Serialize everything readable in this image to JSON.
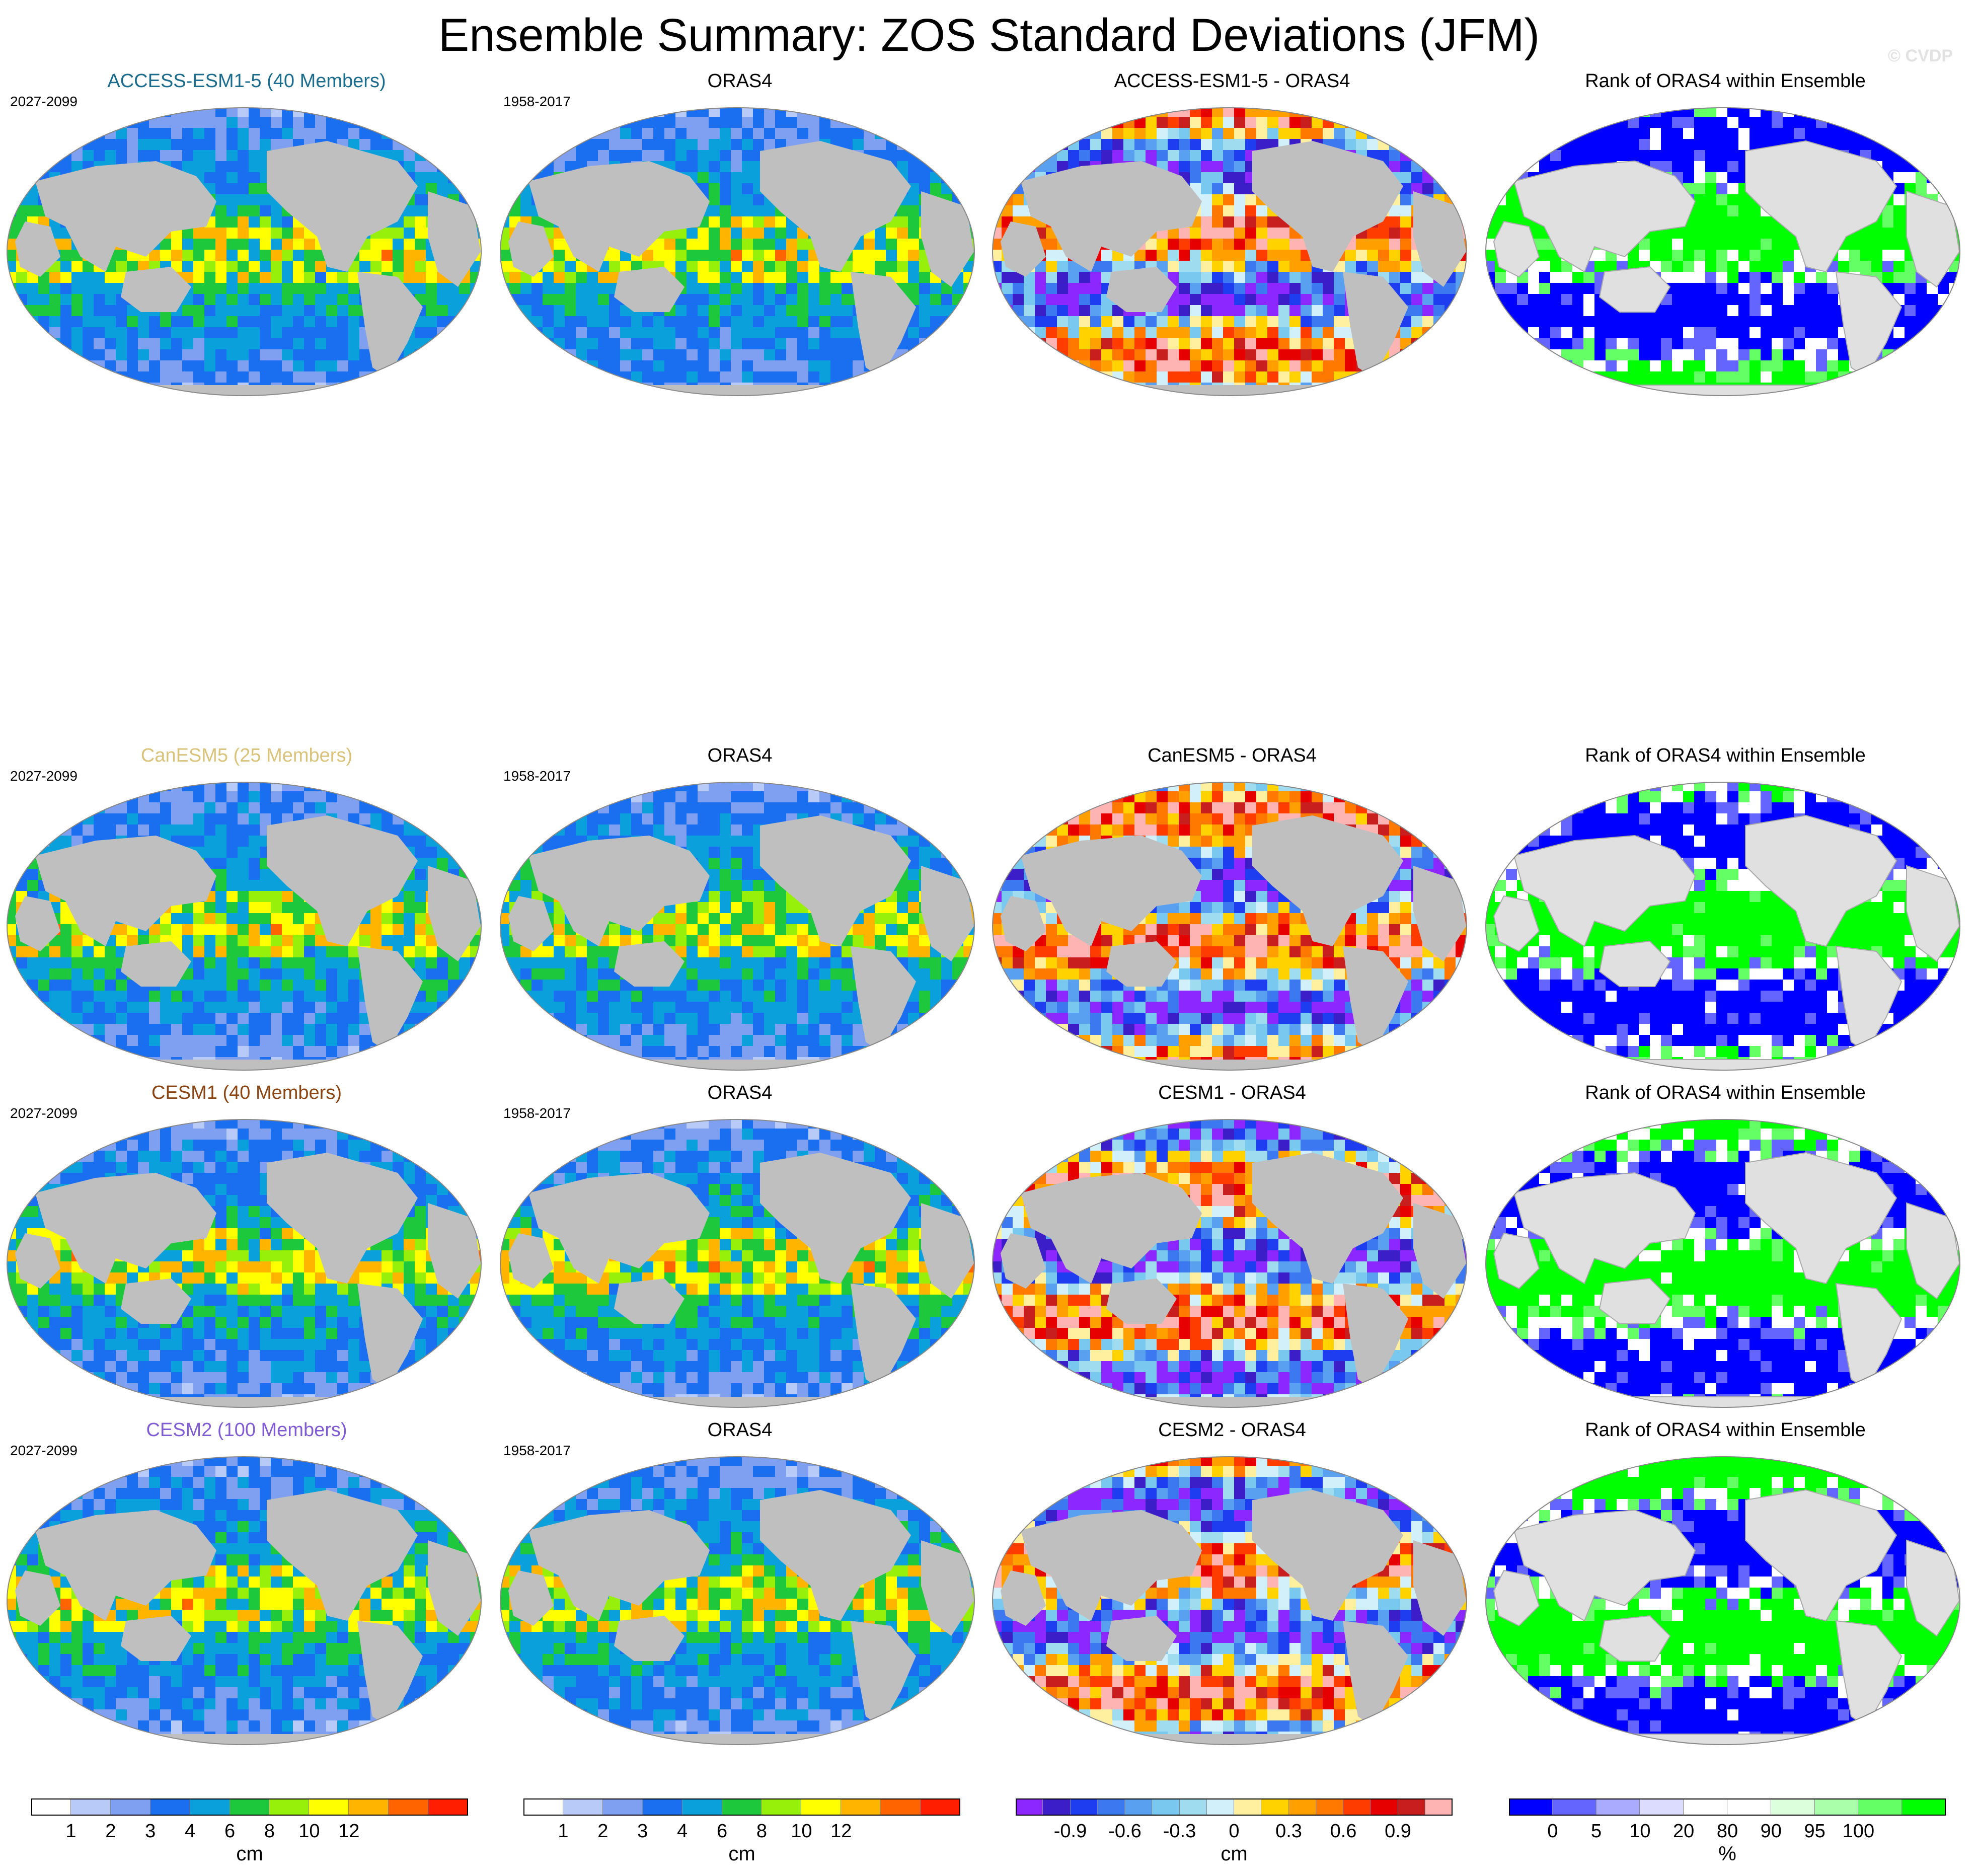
{
  "title": "Ensemble Summary: ZOS Standard Deviations (JFM)",
  "copyright": "© CVDP",
  "colors": {
    "land_dark": "#bfbfbf",
    "land_light": "#e0e0e0",
    "sd_palette": [
      "#ffffff",
      "#b8caf8",
      "#7f9ff0",
      "#1a6ef0",
      "#0aa0dc",
      "#1ec83c",
      "#96f00a",
      "#ffff00",
      "#ffb400",
      "#ff6400",
      "#ff1e00"
    ],
    "diff_palette": [
      "#8c28ff",
      "#3c1ec8",
      "#1e3cf0",
      "#3c78f0",
      "#5aa0f0",
      "#78c8f0",
      "#a0dcf0",
      "#d2f0fa",
      "#fff0a0",
      "#ffd200",
      "#ffa000",
      "#ff7800",
      "#ff3c00",
      "#e60000",
      "#c81e1e",
      "#ffb4b4"
    ],
    "rank_palette": [
      "#0000ff",
      "#6464ff",
      "#aaaaff",
      "#dcdcff",
      "#ffffff",
      "#ffffff",
      "#dcffdc",
      "#aaffaa",
      "#64ff64",
      "#00ff00"
    ]
  },
  "rows": [
    {
      "model_title": "ACCESS-ESM1-5 (40 Members)",
      "model_color": "#1a6b8c",
      "model_period": "2027-2099",
      "obs_title": "ORAS4",
      "obs_period": "1958-2017",
      "diff_title": "ACCESS-ESM1-5 - ORAS4",
      "rank_title": "Rank of ORAS4 within Ensemble"
    },
    {
      "model_title": "CanESM5 (25 Members)",
      "model_color": "#d9c27a",
      "model_period": "2027-2099",
      "obs_title": "ORAS4",
      "obs_period": "1958-2017",
      "diff_title": "CanESM5 - ORAS4",
      "rank_title": "Rank of ORAS4 within Ensemble"
    },
    {
      "model_title": "CESM1 (40 Members)",
      "model_color": "#8a4512",
      "model_period": "2027-2099",
      "obs_title": "ORAS4",
      "obs_period": "1958-2017",
      "diff_title": "CESM1 - ORAS4",
      "rank_title": "Rank of ORAS4 within Ensemble"
    },
    {
      "model_title": "CESM2 (100 Members)",
      "model_color": "#7f5bd4",
      "model_period": "2027-2099",
      "obs_title": "ORAS4",
      "obs_period": "1958-2017",
      "diff_title": "CESM2 - ORAS4",
      "rank_title": "Rank of ORAS4 within Ensemble"
    }
  ],
  "chart_data": {
    "type": "heatmap",
    "projection": "global map panels, 4 rows x 4 columns",
    "colorbars": [
      {
        "unit": "cm",
        "ticks": [
          "1",
          "2",
          "3",
          "4",
          "6",
          "8",
          "10",
          "12"
        ]
      },
      {
        "unit": "cm",
        "ticks": [
          "1",
          "2",
          "3",
          "4",
          "6",
          "8",
          "10",
          "12"
        ]
      },
      {
        "unit": "cm",
        "ticks": [
          "-0.9",
          "-0.6",
          "-0.3",
          "0",
          "0.3",
          "0.6",
          "0.9"
        ]
      },
      {
        "unit": "%",
        "ticks": [
          "0",
          "5",
          "10",
          "20",
          "80",
          "90",
          "95",
          "100"
        ]
      }
    ]
  }
}
